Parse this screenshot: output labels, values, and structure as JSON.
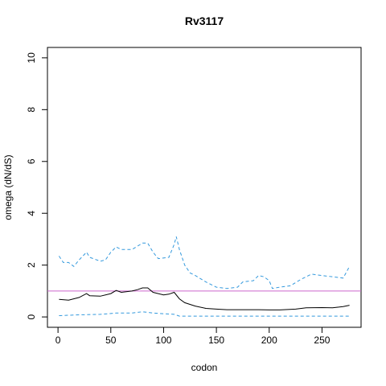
{
  "chart_data": {
    "type": "line",
    "title": "Rv3117",
    "xlabel": "codon",
    "ylabel": "omega (dN/dS)",
    "xlim": [
      -10,
      287
    ],
    "ylim": [
      -0.4,
      10.4
    ],
    "xticks": [
      0,
      50,
      100,
      150,
      200,
      250
    ],
    "yticks": [
      0,
      2,
      4,
      6,
      8,
      10
    ],
    "hline": {
      "value": 1,
      "color": "#cc66cc"
    },
    "series": [
      {
        "color": "#000000",
        "dash": false,
        "x": [
          1,
          10,
          20,
          27,
          30,
          40,
          50,
          55,
          60,
          70,
          75,
          80,
          85,
          90,
          100,
          105,
          110,
          115,
          120,
          130,
          140,
          150,
          160,
          175,
          190,
          200,
          210,
          225,
          235,
          250,
          260,
          270,
          276
        ],
        "values": [
          0.68,
          0.65,
          0.75,
          0.9,
          0.82,
          0.8,
          0.9,
          1.02,
          0.95,
          1.0,
          1.05,
          1.12,
          1.12,
          0.95,
          0.85,
          0.88,
          0.95,
          0.7,
          0.55,
          0.42,
          0.33,
          0.3,
          0.28,
          0.28,
          0.28,
          0.27,
          0.27,
          0.3,
          0.35,
          0.36,
          0.35,
          0.4,
          0.45
        ]
      },
      {
        "color": "#3399dd",
        "dash": true,
        "x": [
          1,
          5,
          10,
          15,
          20,
          27,
          30,
          40,
          45,
          50,
          55,
          60,
          70,
          80,
          85,
          90,
          95,
          105,
          110,
          112,
          115,
          120,
          125,
          130,
          140,
          150,
          160,
          170,
          175,
          185,
          190,
          195,
          200,
          203,
          210,
          220,
          230,
          240,
          250,
          260,
          270,
          276
        ],
        "values": [
          2.35,
          2.1,
          2.1,
          1.95,
          2.2,
          2.5,
          2.3,
          2.15,
          2.2,
          2.5,
          2.7,
          2.6,
          2.6,
          2.85,
          2.85,
          2.5,
          2.25,
          2.3,
          2.8,
          3.1,
          2.6,
          2.0,
          1.7,
          1.6,
          1.35,
          1.15,
          1.1,
          1.15,
          1.35,
          1.4,
          1.6,
          1.55,
          1.4,
          1.1,
          1.15,
          1.2,
          1.45,
          1.65,
          1.6,
          1.55,
          1.5,
          1.95
        ]
      },
      {
        "color": "#3399dd",
        "dash": true,
        "x": [
          1,
          20,
          40,
          55,
          70,
          80,
          90,
          110,
          115,
          276
        ],
        "values": [
          0.05,
          0.08,
          0.1,
          0.15,
          0.15,
          0.2,
          0.15,
          0.1,
          0.03,
          0.03
        ]
      }
    ]
  }
}
